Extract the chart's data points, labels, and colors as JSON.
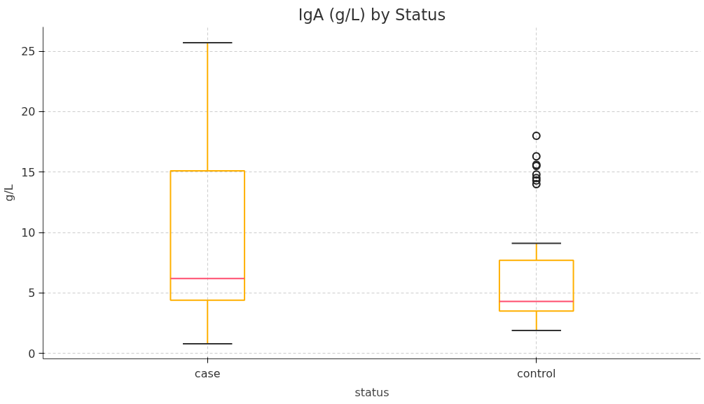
{
  "chart_data": {
    "type": "box",
    "title": "IgA (g/L) by Status",
    "xlabel": "status",
    "ylabel": "g/L",
    "categories": [
      "case",
      "control"
    ],
    "series": [
      {
        "color": "#ffb000",
        "boxes": [
          {
            "low": 0.8,
            "q1": 4.4,
            "median": 6.2,
            "q3": 15.1,
            "high": 25.7
          },
          {
            "low": 1.9,
            "q1": 3.5,
            "median": 4.3,
            "q3": 7.7,
            "high": 9.1,
            "outliers": [
              18.0,
              16.3,
              15.6,
              15.5,
              14.8,
              14.5,
              14.3,
              14.0
            ]
          }
        ]
      }
    ],
    "ylim": [
      -0.45,
      27
    ],
    "yticks": [
      0,
      5,
      10,
      15,
      20,
      25
    ],
    "grid": true
  }
}
